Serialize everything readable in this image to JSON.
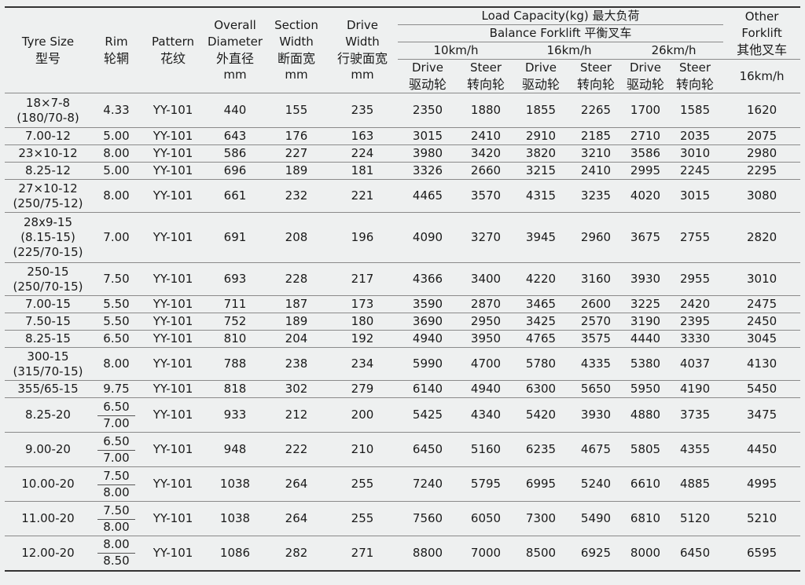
{
  "header": {
    "tyre_size": {
      "en": "Tyre Size",
      "cn": "型号"
    },
    "rim": {
      "en": "Rim",
      "cn": "轮辋"
    },
    "pattern": {
      "en": "Pattern",
      "cn": "花纹"
    },
    "overall_diameter": {
      "en1": "Overall",
      "en2": "Diameter",
      "cn": "外直径",
      "unit": "mm"
    },
    "section_width": {
      "en1": "Section",
      "en2": "Width",
      "cn": "断面宽",
      "unit": "mm"
    },
    "drive_width": {
      "en1": "Drive",
      "en2": "Width",
      "cn": "行驶面宽",
      "unit": "mm"
    },
    "load_capacity": "Load Capacity(kg) 最大负荷",
    "balance_forklift": "Balance Forklift 平衡叉车",
    "other_forklift": {
      "en": "Other Forklift",
      "cn": "其他叉车"
    },
    "speeds": [
      "10km/h",
      "16km/h",
      "26km/h"
    ],
    "drive": {
      "en": "Drive",
      "cn": "驱动轮"
    },
    "steer": {
      "en": "Steer",
      "cn": "转向轮"
    },
    "other_speed": "16km/h"
  },
  "rows": [
    {
      "size": [
        "18×7-8",
        "(180/70-8)"
      ],
      "rim": [
        "4.33"
      ],
      "pattern": "YY-101",
      "od": "440",
      "sw": "155",
      "dw": "235",
      "d10": "2350",
      "s10": "1880",
      "d16": "1855",
      "s16": "2265",
      "d26": "1700",
      "s26": "1585",
      "other": "1620"
    },
    {
      "size": [
        "7.00-12"
      ],
      "rim": [
        "5.00"
      ],
      "pattern": "YY-101",
      "od": "643",
      "sw": "176",
      "dw": "163",
      "d10": "3015",
      "s10": "2410",
      "d16": "2910",
      "s16": "2185",
      "d26": "2710",
      "s26": "2035",
      "other": "2075"
    },
    {
      "size": [
        "23×10-12"
      ],
      "rim": [
        "8.00"
      ],
      "pattern": "YY-101",
      "od": "586",
      "sw": "227",
      "dw": "224",
      "d10": "3980",
      "s10": "3420",
      "d16": "3820",
      "s16": "3210",
      "d26": "3586",
      "s26": "3010",
      "other": "2980"
    },
    {
      "size": [
        "8.25-12"
      ],
      "rim": [
        "5.00"
      ],
      "pattern": "YY-101",
      "od": "696",
      "sw": "189",
      "dw": "181",
      "d10": "3326",
      "s10": "2660",
      "d16": "3215",
      "s16": "2410",
      "d26": "2995",
      "s26": "2245",
      "other": "2295"
    },
    {
      "size": [
        "27×10-12",
        "(250/75-12)"
      ],
      "rim": [
        "8.00"
      ],
      "pattern": "YY-101",
      "od": "661",
      "sw": "232",
      "dw": "221",
      "d10": "4465",
      "s10": "3570",
      "d16": "4315",
      "s16": "3235",
      "d26": "4020",
      "s26": "3015",
      "other": "3080"
    },
    {
      "size": [
        "28x9-15",
        "(8.15-15)",
        "(225/70-15)"
      ],
      "rim": [
        "7.00"
      ],
      "pattern": "YY-101",
      "od": "691",
      "sw": "208",
      "dw": "196",
      "d10": "4090",
      "s10": "3270",
      "d16": "3945",
      "s16": "2960",
      "d26": "3675",
      "s26": "2755",
      "other": "2820"
    },
    {
      "size": [
        "250-15",
        "(250/70-15)"
      ],
      "rim": [
        "7.50"
      ],
      "pattern": "YY-101",
      "od": "693",
      "sw": "228",
      "dw": "217",
      "d10": "4366",
      "s10": "3400",
      "d16": "4220",
      "s16": "3160",
      "d26": "3930",
      "s26": "2955",
      "other": "3010"
    },
    {
      "size": [
        "7.00-15"
      ],
      "rim": [
        "5.50"
      ],
      "pattern": "YY-101",
      "od": "711",
      "sw": "187",
      "dw": "173",
      "d10": "3590",
      "s10": "2870",
      "d16": "3465",
      "s16": "2600",
      "d26": "3225",
      "s26": "2420",
      "other": "2475"
    },
    {
      "size": [
        "7.50-15"
      ],
      "rim": [
        "5.50"
      ],
      "pattern": "YY-101",
      "od": "752",
      "sw": "189",
      "dw": "180",
      "d10": "3690",
      "s10": "2950",
      "d16": "3425",
      "s16": "2570",
      "d26": "3190",
      "s26": "2395",
      "other": "2450"
    },
    {
      "size": [
        "8.25-15"
      ],
      "rim": [
        "6.50"
      ],
      "pattern": "YY-101",
      "od": "810",
      "sw": "204",
      "dw": "192",
      "d10": "4940",
      "s10": "3950",
      "d16": "4765",
      "s16": "3575",
      "d26": "4440",
      "s26": "3330",
      "other": "3045"
    },
    {
      "size": [
        "300-15",
        "(315/70-15)"
      ],
      "rim": [
        "8.00"
      ],
      "pattern": "YY-101",
      "od": "788",
      "sw": "238",
      "dw": "234",
      "d10": "5990",
      "s10": "4700",
      "d16": "5780",
      "s16": "4335",
      "d26": "5380",
      "s26": "4037",
      "other": "4130"
    },
    {
      "size": [
        "355/65-15"
      ],
      "rim": [
        "9.75"
      ],
      "pattern": "YY-101",
      "od": "818",
      "sw": "302",
      "dw": "279",
      "d10": "6140",
      "s10": "4940",
      "d16": "6300",
      "s16": "5650",
      "d26": "5950",
      "s26": "4190",
      "other": "5450"
    },
    {
      "size": [
        "8.25-20"
      ],
      "rim": [
        "6.50",
        "7.00"
      ],
      "pattern": "YY-101",
      "od": "933",
      "sw": "212",
      "dw": "200",
      "d10": "5425",
      "s10": "4340",
      "d16": "5420",
      "s16": "3930",
      "d26": "4880",
      "s26": "3735",
      "other": "3475"
    },
    {
      "size": [
        "9.00-20"
      ],
      "rim": [
        "6.50",
        "7.00"
      ],
      "pattern": "YY-101",
      "od": "948",
      "sw": "222",
      "dw": "210",
      "d10": "6450",
      "s10": "5160",
      "d16": "6235",
      "s16": "4675",
      "d26": "5805",
      "s26": "4355",
      "other": "4450"
    },
    {
      "size": [
        "10.00-20"
      ],
      "rim": [
        "7.50",
        "8.00"
      ],
      "pattern": "YY-101",
      "od": "1038",
      "sw": "264",
      "dw": "255",
      "d10": "7240",
      "s10": "5795",
      "d16": "6995",
      "s16": "5240",
      "d26": "6610",
      "s26": "4885",
      "other": "4995"
    },
    {
      "size": [
        "11.00-20"
      ],
      "rim": [
        "7.50",
        "8.00"
      ],
      "pattern": "YY-101",
      "od": "1038",
      "sw": "264",
      "dw": "255",
      "d10": "7560",
      "s10": "6050",
      "d16": "7300",
      "s16": "5490",
      "d26": "6810",
      "s26": "5120",
      "other": "5210"
    },
    {
      "size": [
        "12.00-20"
      ],
      "rim": [
        "8.00",
        "8.50"
      ],
      "pattern": "YY-101",
      "od": "1086",
      "sw": "282",
      "dw": "271",
      "d10": "8800",
      "s10": "7000",
      "d16": "8500",
      "s16": "6925",
      "d26": "8000",
      "s26": "6450",
      "other": "6595"
    }
  ]
}
